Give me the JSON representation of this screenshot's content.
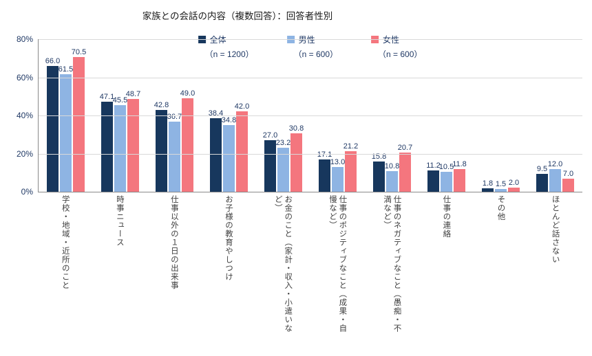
{
  "title": "家族との会話の内容（複数回答）：回答者性別",
  "chart_data": {
    "type": "bar",
    "title": "家族との会話の内容（複数回答）：回答者性別",
    "categories": [
      "学校・地域・近所のこと",
      "時事ニュース",
      "仕事以外の１日の出来事",
      "お子様の教育やしつけ",
      "お金のこと（家計・収入・小遣いなど）",
      "仕事のポジティブなこと（成果・自慢など）",
      "仕事のネガティブなこと（愚痴・不満など）",
      "仕事の連絡",
      "その他",
      "ほとんど話さない"
    ],
    "series": [
      {
        "key": "all",
        "name": "全体",
        "n_label": "（n = 1200）",
        "color": "#17375d",
        "values": [
          66.0,
          47.1,
          42.8,
          38.4,
          27.0,
          17.1,
          15.8,
          11.2,
          1.8,
          9.5
        ]
      },
      {
        "key": "male",
        "name": "男性",
        "n_label": "（n = 600）",
        "color": "#8eb4e3",
        "values": [
          61.5,
          45.5,
          36.7,
          34.8,
          23.2,
          13.0,
          10.8,
          10.5,
          1.5,
          12.0
        ]
      },
      {
        "key": "female",
        "name": "女性",
        "n_label": "（n = 600）",
        "color": "#f4767e",
        "values": [
          70.5,
          48.7,
          49.0,
          42.0,
          30.8,
          21.2,
          20.7,
          11.8,
          2.0,
          7.0
        ]
      }
    ],
    "xlabel": "",
    "ylabel": "",
    "ylim": [
      0,
      80
    ],
    "yticks": [
      "0%",
      "20%",
      "40%",
      "60%",
      "80%"
    ],
    "grid": true,
    "legend_position": "top",
    "value_label_color": "#1f3864"
  }
}
